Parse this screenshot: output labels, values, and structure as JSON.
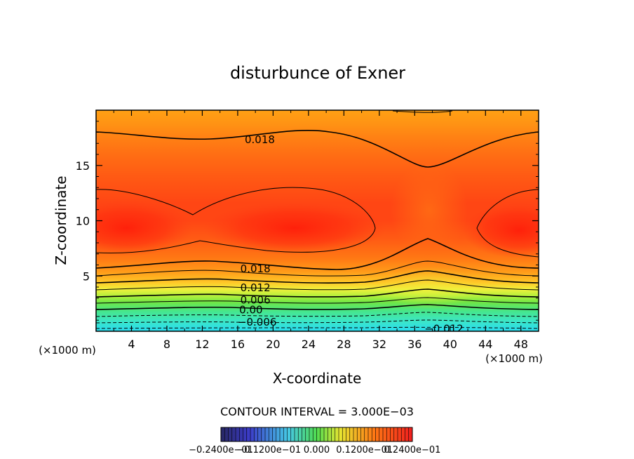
{
  "chart_data": {
    "type": "contour",
    "title": "disturbunce of Exner",
    "xlabel": "X-coordinate",
    "ylabel": "Z-coordinate",
    "x_units": "(×1000 m)",
    "y_units": "(×1000 m)",
    "xlim": [
      0,
      50
    ],
    "ylim": [
      0,
      20
    ],
    "x_ticks": [
      4,
      8,
      12,
      16,
      20,
      24,
      28,
      32,
      36,
      40,
      44,
      48
    ],
    "y_ticks": [
      5,
      10,
      15
    ],
    "contour_interval_text": "CONTOUR INTERVAL = 3.000E−03",
    "contour_interval": 0.003,
    "contour_labels": [
      {
        "text": "0.018",
        "x": 18.5,
        "z": 17.4
      },
      {
        "text": "0.018",
        "x": 18.0,
        "z": 5.7
      },
      {
        "text": "0.012",
        "x": 18.0,
        "z": 4.0
      },
      {
        "text": "0.006",
        "x": 18.0,
        "z": 2.9
      },
      {
        "text": "0.00",
        "x": 17.5,
        "z": 2.0
      },
      {
        "text": "−0.006",
        "x": 18.2,
        "z": 0.9
      },
      {
        "text": "−0.012",
        "x": 39.3,
        "z": 0.3
      }
    ],
    "colorbar": {
      "colors": [
        "#282878",
        "#3c50c8",
        "#46c8e6",
        "#50dc50",
        "#e6e632",
        "#ff7814",
        "#f01e1e"
      ],
      "tick_labels": [
        "−0.2400e−01",
        "−0.1200e−01",
        "0.000",
        "0.1200e−01",
        "0.2400e−01"
      ]
    }
  }
}
